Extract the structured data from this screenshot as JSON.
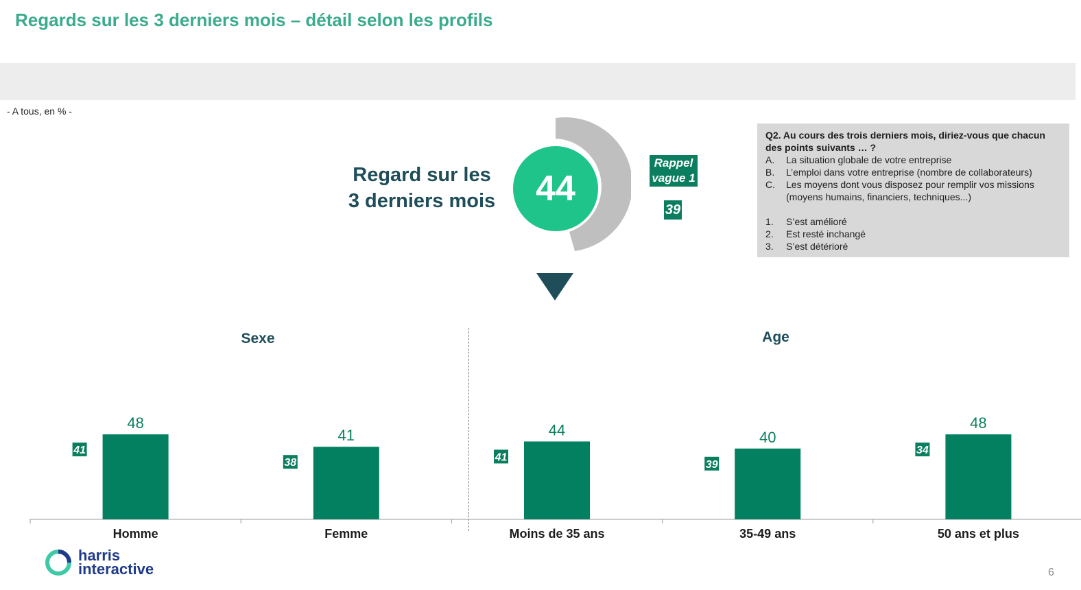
{
  "title": "Regards sur les 3 derniers mois – détail selon les profils",
  "base_note": "- A tous, en % -",
  "headline": {
    "line1": "Regard sur les",
    "line2": "3 derniers mois"
  },
  "score": {
    "value": 44
  },
  "rappel": {
    "line1": "Rappel",
    "line2": "vague 1",
    "value": 39
  },
  "question": {
    "title": "Q2. Au cours des trois derniers mois, diriez-vous que chacun des points suivants … ?",
    "items": [
      {
        "label": "A.",
        "text": "La situation globale de votre entreprise"
      },
      {
        "label": "B.",
        "text": "L’emploi dans votre entreprise (nombre de collaborateurs)"
      },
      {
        "label": "C.",
        "text": "Les moyens dont vous disposez pour remplir vos missions (moyens humains, financiers, techniques...)"
      }
    ],
    "options": [
      {
        "label": "1.",
        "text": "S’est amélioré"
      },
      {
        "label": "2.",
        "text": "Est resté inchangé"
      },
      {
        "label": "3.",
        "text": "S’est détérioré"
      }
    ]
  },
  "groups": {
    "sexe": "Sexe",
    "age": "Age"
  },
  "chart_data": {
    "type": "bar",
    "categories": [
      "Homme",
      "Femme",
      "Moins de 35 ans",
      "35-49 ans",
      "50 ans et plus"
    ],
    "values": [
      48,
      41,
      44,
      40,
      48
    ],
    "rappel_values": [
      41,
      38,
      41,
      39,
      34
    ],
    "groups": [
      {
        "name": "Sexe",
        "categories": [
          "Homme",
          "Femme"
        ]
      },
      {
        "name": "Age",
        "categories": [
          "Moins de 35 ans",
          "35-49 ans",
          "50 ans et plus"
        ]
      }
    ],
    "ylim": [
      0,
      100
    ],
    "grid": false,
    "bar_color": "#028060"
  },
  "logo": {
    "line1": "harris",
    "line2": "interactive"
  },
  "page_number": "6",
  "colors": {
    "title": "#3aab8c",
    "dark_teal": "#1f4e5a",
    "score_green": "#1ec48a",
    "gauge_grey": "#bfbfbf",
    "bar_green": "#028060",
    "rappel_green": "#0a7e5e"
  }
}
